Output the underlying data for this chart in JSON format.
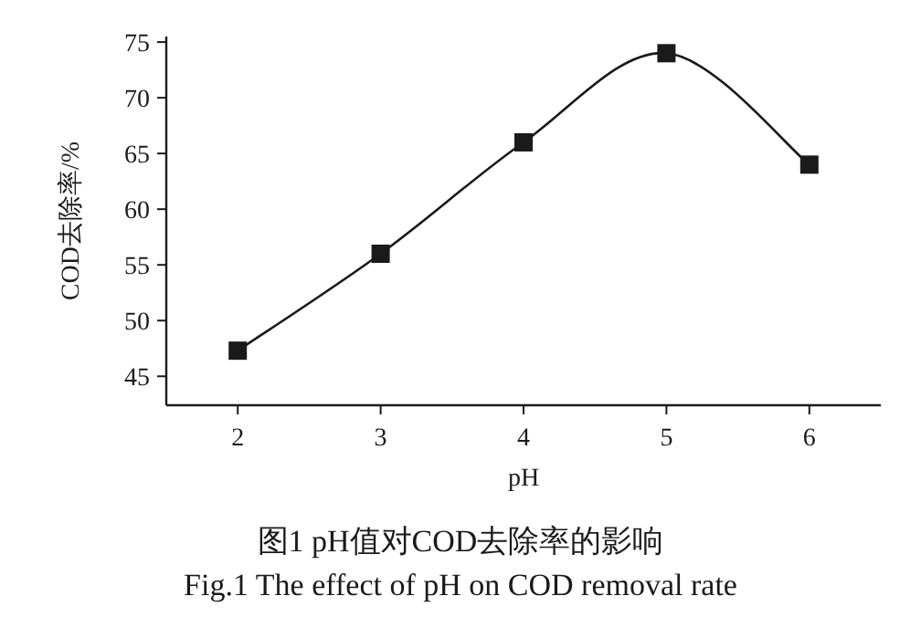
{
  "chart_data": {
    "type": "line",
    "title": "图1 pH值对COD去除率的影响",
    "subtitle": "Fig.1 The effect of pH on COD removal rate",
    "xlabel": "pH",
    "ylabel": "COD去除率/%",
    "x": [
      2,
      3,
      4,
      5,
      6
    ],
    "series": [
      {
        "color": "#1a1a1a",
        "values": [
          47.3,
          56,
          66,
          74,
          64
        ]
      }
    ],
    "xlim": [
      1.5,
      6.5
    ],
    "ylim": [
      42.4,
      75.5
    ],
    "xticks": [
      2,
      3,
      4,
      5,
      6
    ],
    "yticks": [
      45,
      50,
      55,
      60,
      65,
      70,
      75
    ],
    "marker": "square",
    "line_style": "solid",
    "grid": false
  }
}
